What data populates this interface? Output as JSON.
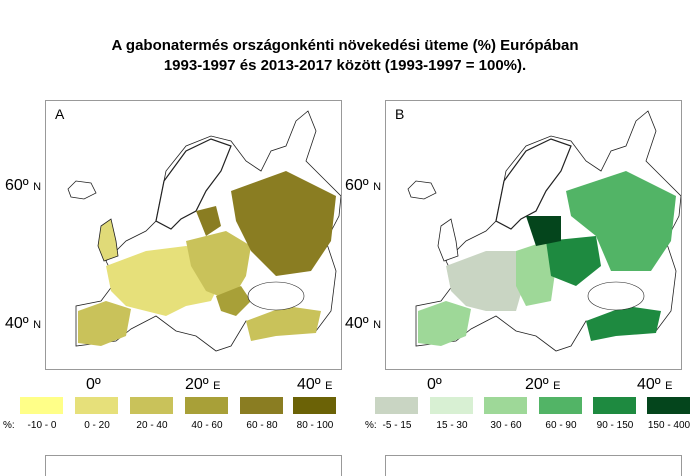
{
  "title": {
    "line1": "A gabonatermés országonkénti növekedési üteme (%) Európában",
    "line2": "1993-1997 és 2013-2017 között (1993-1997 = 100%)."
  },
  "maps": [
    {
      "label": "A",
      "lat_ticks": [
        {
          "deg": "60º",
          "hemi": "N"
        },
        {
          "deg": "40º",
          "hemi": "N"
        }
      ],
      "lon_ticks": [
        {
          "deg": "0º",
          "hemi": ""
        },
        {
          "deg": "20º",
          "hemi": "E"
        },
        {
          "deg": "40º",
          "hemi": "E"
        }
      ],
      "legend_prefix": "%:",
      "legend": [
        {
          "range": "-10 - 0",
          "color": "#ffff88"
        },
        {
          "range": "0 - 20",
          "color": "#e6e07a"
        },
        {
          "range": "20 - 40",
          "color": "#c9c25a"
        },
        {
          "range": "40 - 60",
          "color": "#a8a038"
        },
        {
          "range": "60 - 80",
          "color": "#8a7d22"
        },
        {
          "range": "80 - 100",
          "color": "#6b6206"
        }
      ]
    },
    {
      "label": "B",
      "lat_ticks": [
        {
          "deg": "60º",
          "hemi": "N"
        },
        {
          "deg": "40º",
          "hemi": "N"
        }
      ],
      "lon_ticks": [
        {
          "deg": "0º",
          "hemi": ""
        },
        {
          "deg": "20º",
          "hemi": "E"
        },
        {
          "deg": "40º",
          "hemi": "E"
        }
      ],
      "legend_prefix": "%:",
      "legend": [
        {
          "range": "-5 - 15",
          "color": "#c9d5c3"
        },
        {
          "range": "15 - 30",
          "color": "#d8f0d3"
        },
        {
          "range": "30 - 60",
          "color": "#9ed898"
        },
        {
          "range": "60 - 90",
          "color": "#52b466"
        },
        {
          "range": "90 - 150",
          "color": "#1e8a40"
        },
        {
          "range": "150 - 400",
          "color": "#04451c"
        }
      ]
    }
  ]
}
